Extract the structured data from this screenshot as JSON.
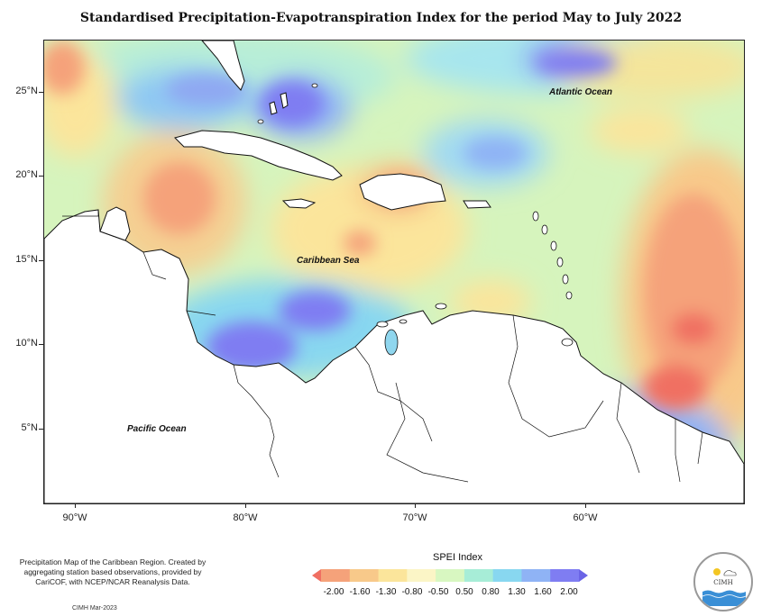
{
  "title": "Standardised Precipitation-Evapotranspiration Index for the period May to July 2022",
  "axes": {
    "lat_labels": [
      "25°N",
      "20°N",
      "15°N",
      "10°N",
      "5°N"
    ],
    "lon_labels": [
      "90°W",
      "80°W",
      "70°W",
      "60°W"
    ]
  },
  "labels": {
    "atlantic": "Atlantic Ocean",
    "caribbean": "Caribbean Sea",
    "pacific": "Pacific Ocean"
  },
  "legend": {
    "title": "SPEI Index",
    "ticks": [
      "-2.00",
      "-1.60",
      "-1.30",
      "-0.80",
      "-0.50",
      "0.50",
      "0.80",
      "1.30",
      "1.60",
      "2.00"
    ],
    "colors": [
      "#f06f62",
      "#f5a27a",
      "#f8c98a",
      "#fbe59b",
      "#fbf5c6",
      "#d8f7c1",
      "#a7edd7",
      "#88d7f0",
      "#8fb3f5",
      "#7f7df2",
      "#6b64e6"
    ]
  },
  "note": "Precipitation Map of the Caribbean Region. Created by aggregating station based observations, provided by CariCOF, with NCEP/NCAR Reanalysis Data.",
  "credit": "CIMH Mar-2023",
  "logo": {
    "text": "CIMH",
    "icon": "cimh-logo"
  }
}
